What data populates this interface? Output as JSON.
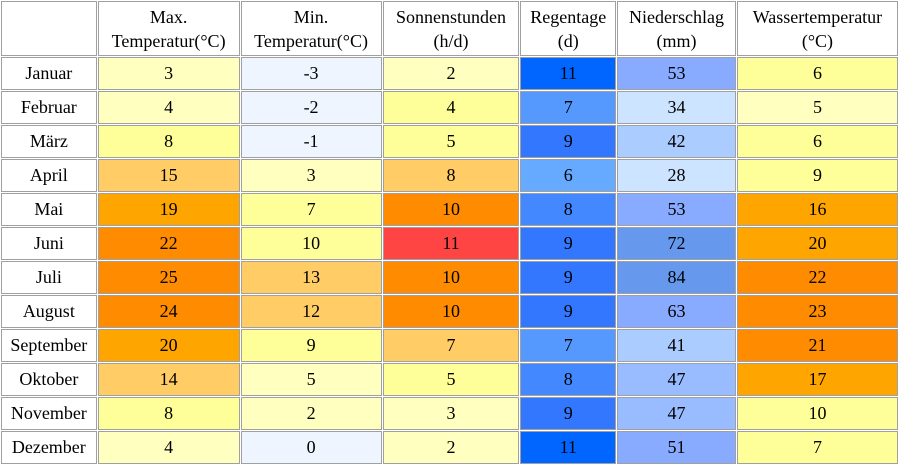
{
  "table": {
    "header": [
      [
        "Max.",
        "Temperatur(°C)"
      ],
      [
        "Min.",
        "Temperatur(°C)"
      ],
      [
        "Sonnenstunden",
        "(h/d)"
      ],
      [
        "Regentage",
        "(d)"
      ],
      [
        "Niederschlag",
        "(mm)"
      ],
      [
        "Wassertemperatur",
        "(°C)"
      ]
    ],
    "rows": [
      {
        "label": "Januar",
        "values": [
          3,
          -3,
          2,
          11,
          53,
          6
        ],
        "colors": [
          "#ffffc0",
          "#eef5ff",
          "#ffffc0",
          "#0066ff",
          "#88aaff",
          "#ffff99"
        ]
      },
      {
        "label": "Februar",
        "values": [
          4,
          -2,
          4,
          7,
          34,
          5
        ],
        "colors": [
          "#ffffc0",
          "#eef5ff",
          "#ffff99",
          "#5599ff",
          "#cce4ff",
          "#ffffc0"
        ]
      },
      {
        "label": "März",
        "values": [
          8,
          -1,
          5,
          9,
          42,
          6
        ],
        "colors": [
          "#ffff99",
          "#eef5ff",
          "#ffff99",
          "#3377ff",
          "#aaccff",
          "#ffff99"
        ]
      },
      {
        "label": "April",
        "values": [
          15,
          3,
          8,
          6,
          28,
          9
        ],
        "colors": [
          "#ffcc66",
          "#ffffc0",
          "#ffcc66",
          "#66aaff",
          "#cce4ff",
          "#ffff99"
        ]
      },
      {
        "label": "Mai",
        "values": [
          19,
          7,
          10,
          8,
          53,
          16
        ],
        "colors": [
          "#ffa500",
          "#ffff99",
          "#ff8c00",
          "#4488ff",
          "#88aaff",
          "#ffa500"
        ]
      },
      {
        "label": "Juni",
        "values": [
          22,
          10,
          11,
          9,
          72,
          20
        ],
        "colors": [
          "#ff8c00",
          "#ffff99",
          "#ff4444",
          "#3377ff",
          "#6699ee",
          "#ffa500"
        ]
      },
      {
        "label": "Juli",
        "values": [
          25,
          13,
          10,
          9,
          84,
          22
        ],
        "colors": [
          "#ff8c00",
          "#ffcc66",
          "#ff8c00",
          "#3377ff",
          "#6699ee",
          "#ff8c00"
        ]
      },
      {
        "label": "August",
        "values": [
          24,
          12,
          10,
          9,
          63,
          23
        ],
        "colors": [
          "#ff8c00",
          "#ffcc66",
          "#ff8c00",
          "#3377ff",
          "#88aaff",
          "#ff8c00"
        ]
      },
      {
        "label": "September",
        "values": [
          20,
          9,
          7,
          7,
          41,
          21
        ],
        "colors": [
          "#ffa500",
          "#ffff99",
          "#ffcc66",
          "#5599ff",
          "#aaccff",
          "#ff8c00"
        ]
      },
      {
        "label": "Oktober",
        "values": [
          14,
          5,
          5,
          8,
          47,
          17
        ],
        "colors": [
          "#ffcc66",
          "#ffffc0",
          "#ffff99",
          "#4488ff",
          "#99bbff",
          "#ffa500"
        ]
      },
      {
        "label": "November",
        "values": [
          8,
          2,
          3,
          9,
          47,
          10
        ],
        "colors": [
          "#ffff99",
          "#ffffc0",
          "#ffffc0",
          "#3377ff",
          "#99bbff",
          "#ffff99"
        ]
      },
      {
        "label": "Dezember",
        "values": [
          4,
          0,
          2,
          11,
          51,
          7
        ],
        "colors": [
          "#ffffc0",
          "#eef5ff",
          "#ffffc0",
          "#0066ff",
          "#88aaff",
          "#ffff99"
        ]
      }
    ]
  }
}
